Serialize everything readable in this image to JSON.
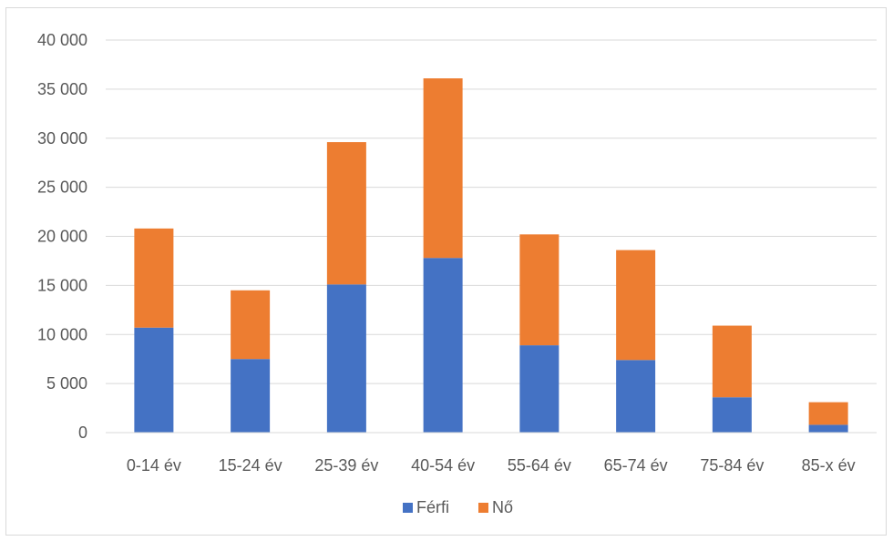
{
  "chart_data": {
    "type": "bar",
    "stacked": true,
    "title": "",
    "xlabel": "",
    "ylabel": "",
    "categories": [
      "0-14 év",
      "15-24 év",
      "25-39 év",
      "40-54 év",
      "55-64 év",
      "65-74 év",
      "75-84 év",
      "85-x év"
    ],
    "series": [
      {
        "name": "Férfi",
        "color": "#4472c4",
        "values": [
          10700,
          7500,
          15100,
          17800,
          8900,
          7400,
          3600,
          800
        ]
      },
      {
        "name": "Nő",
        "color": "#ed7d31",
        "values": [
          10100,
          7000,
          14500,
          18300,
          11300,
          11200,
          7300,
          2300
        ]
      }
    ],
    "ylim": [
      0,
      40000
    ],
    "yticks": [
      0,
      5000,
      10000,
      15000,
      20000,
      25000,
      30000,
      35000,
      40000
    ],
    "ytick_labels": [
      "0",
      "5 000",
      "10 000",
      "15 000",
      "20 000",
      "25 000",
      "30 000",
      "35 000",
      "40 000"
    ],
    "grid": true,
    "legend_position": "bottom"
  }
}
